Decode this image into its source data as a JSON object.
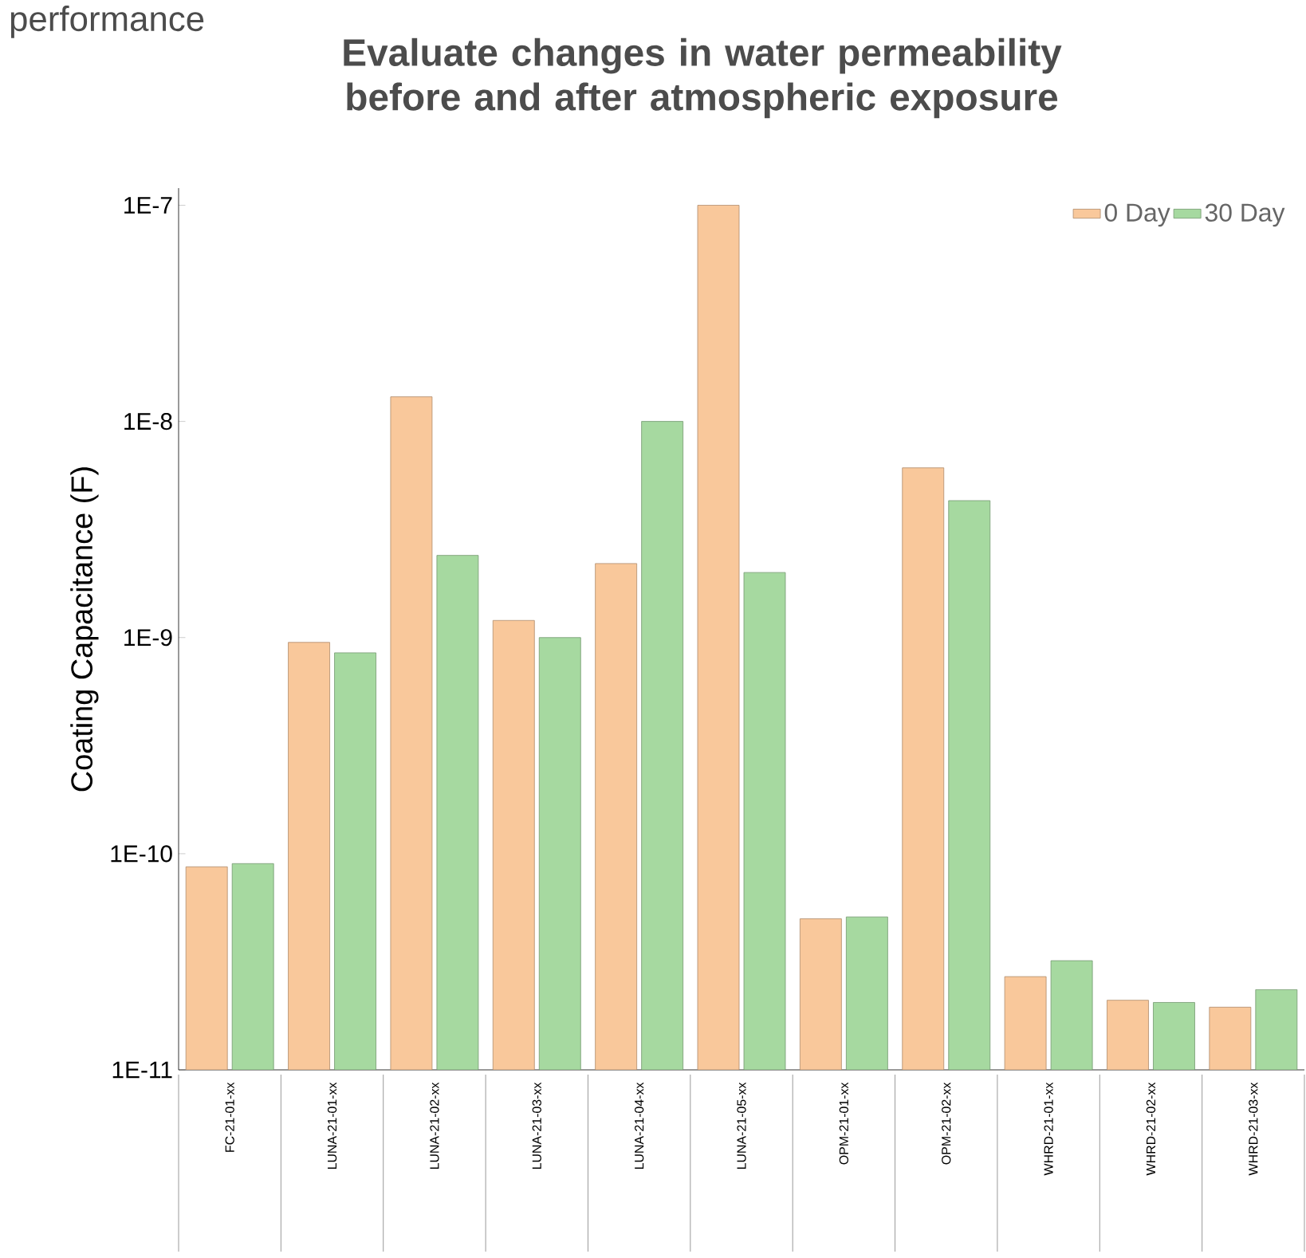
{
  "chart_data": {
    "type": "bar",
    "title": "Evaluate changes in water permeability before and after atmospheric exposure",
    "ylabel": "Coating Capacitance (F)",
    "annotations": [
      "performance"
    ],
    "categories": [
      "FC-21-01-xx",
      "LUNA-21-01-xx",
      "LUNA-21-02-xx",
      "LUNA-21-03-xx",
      "LUNA-21-04-xx",
      "LUNA-21-05-xx",
      "OPM-21-01-xx",
      "OPM-21-02-xx",
      "WHRD-21-01-xx",
      "WHRD-21-02-xx",
      "WHRD-21-03-xx"
    ],
    "series": [
      {
        "name": "0 Day",
        "color": "#f9c89b",
        "values": [
          8.7e-11,
          9.5e-10,
          1.3e-08,
          1.2e-09,
          2.2e-09,
          1e-07,
          5e-11,
          6.1e-09,
          2.7e-11,
          2.1e-11,
          1.95e-11
        ]
      },
      {
        "name": "30 Day",
        "color": "#a6d9a0",
        "values": [
          9e-11,
          8.5e-10,
          2.4e-09,
          1e-09,
          1e-08,
          2e-09,
          5.1e-11,
          4.3e-09,
          3.2e-11,
          2.05e-11,
          2.35e-11
        ]
      }
    ],
    "log": "y",
    "ylim": [
      1e-11,
      1.2e-07
    ],
    "yticks": [
      {
        "value": 1e-11,
        "label": "1E-11"
      },
      {
        "value": 1e-10,
        "label": "1E-10"
      },
      {
        "value": 1e-09,
        "label": "1E-9"
      },
      {
        "value": 1e-08,
        "label": "1E-8"
      },
      {
        "value": 1e-07,
        "label": "1E-7"
      }
    ],
    "legend": "top right",
    "grid": false
  }
}
